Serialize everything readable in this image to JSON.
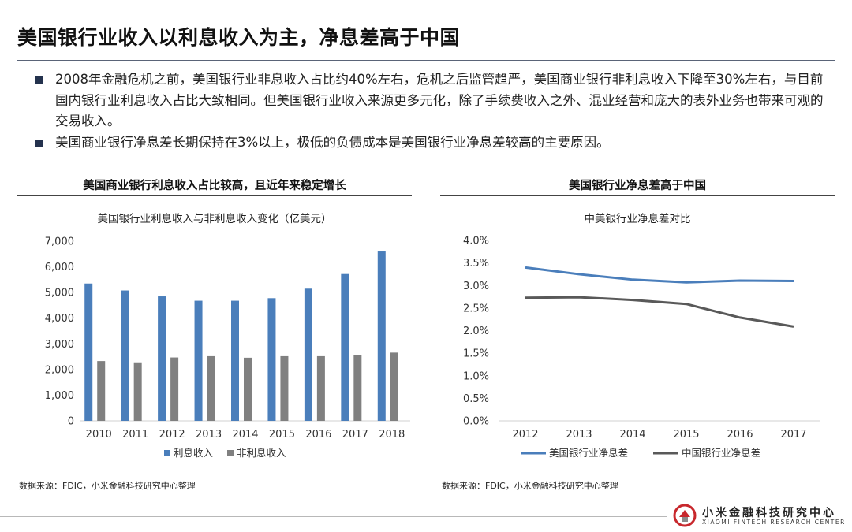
{
  "title": "美国银行业收入以利息收入为主，净息差高于中国",
  "bullets": [
    "2008年金融危机之前，美国银行业非息收入占比约40%左右，危机之后监管趋严，美国商业银行非利息收入下降至30%左右，与目前国内银行业利息收入占比大致相同。但美国银行业收入来源更多元化，除了手续费收入之外、混业经营和庞大的表外业务也带来可观的交易收入。",
    "美国商业银行净息差长期保持在3%以上，极低的负债成本是美国银行业净息差较高的主要原因。"
  ],
  "left_panel": {
    "heading": "美国商业银行利息收入占比较高，且近年来稳定增长",
    "source": "数据来源：FDIC，小米金融科技研究中心整理"
  },
  "right_panel": {
    "heading": "美国银行业净息差高于中国",
    "source": "数据来源：FDIC，小米金融科技研究中心整理"
  },
  "logo": {
    "cn": "小米金融科技研究中心",
    "en": "XIAOMI FINTECH RESEARCH CENTER"
  },
  "colors": {
    "bar_interest": "#4a7ebb",
    "bar_noninterest": "#808080",
    "line_us": "#4a7ebb",
    "line_cn": "#595959",
    "bullet_square": "#24324e"
  },
  "chart_data": [
    {
      "type": "bar",
      "title": "美国银行业利息收入与非利息收入变化（亿美元）",
      "categories": [
        "2010",
        "2011",
        "2012",
        "2013",
        "2014",
        "2015",
        "2016",
        "2017",
        "2018"
      ],
      "series": [
        {
          "name": "利息收入",
          "values": [
            5350,
            5080,
            4850,
            4680,
            4680,
            4780,
            5150,
            5720,
            6600
          ]
        },
        {
          "name": "非利息收入",
          "values": [
            2330,
            2280,
            2470,
            2520,
            2460,
            2520,
            2520,
            2550,
            2660
          ]
        }
      ],
      "ylim": [
        0,
        7000
      ],
      "yticks": [
        "0",
        "1,000",
        "2,000",
        "3,000",
        "4,000",
        "5,000",
        "6,000",
        "7,000"
      ],
      "legend": "bottom",
      "grid": false
    },
    {
      "type": "line",
      "title": "中美银行业净息差对比",
      "x": [
        "2012",
        "2013",
        "2014",
        "2015",
        "2016",
        "2017"
      ],
      "series": [
        {
          "name": "美国银行业净息差",
          "values": [
            3.4,
            3.25,
            3.13,
            3.07,
            3.11,
            3.1
          ]
        },
        {
          "name": "中国银行业净息差",
          "values": [
            2.73,
            2.74,
            2.68,
            2.59,
            2.29,
            2.09
          ]
        }
      ],
      "ylim": [
        0,
        4.0
      ],
      "yticks": [
        "0.0%",
        "0.5%",
        "1.0%",
        "1.5%",
        "2.0%",
        "2.5%",
        "3.0%",
        "3.5%",
        "4.0%"
      ],
      "legend": "bottom",
      "grid": false
    }
  ]
}
